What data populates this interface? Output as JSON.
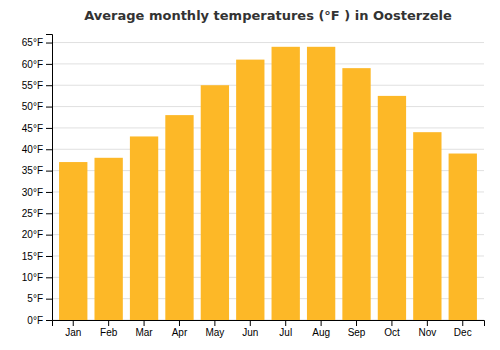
{
  "chart_data": {
    "type": "bar",
    "title": "Average monthly temperatures (°F ) in Oosterzele",
    "categories": [
      "Jan",
      "Feb",
      "Mar",
      "Apr",
      "May",
      "Jun",
      "Jul",
      "Aug",
      "Sep",
      "Oct",
      "Nov",
      "Dec"
    ],
    "values": [
      37.0,
      38.0,
      43.0,
      48.0,
      55.0,
      61.0,
      64.0,
      64.0,
      59.0,
      52.5,
      44.0,
      39.0
    ],
    "color": "#FDB827",
    "ylim": [
      0,
      67
    ],
    "yticks": [
      {
        "value": 0,
        "label": "0°F"
      },
      {
        "value": 5,
        "label": "5°F"
      },
      {
        "value": 10,
        "label": "10°F"
      },
      {
        "value": 15,
        "label": "15°F"
      },
      {
        "value": 20,
        "label": "20°F"
      },
      {
        "value": 25,
        "label": "25°F"
      },
      {
        "value": 30,
        "label": "30°F"
      },
      {
        "value": 35,
        "label": "35°F"
      },
      {
        "value": 40,
        "label": "40°F"
      },
      {
        "value": 45,
        "label": "45°F"
      },
      {
        "value": 50,
        "label": "50°F"
      },
      {
        "value": 55,
        "label": "55°F"
      },
      {
        "value": 60,
        "label": "60°F"
      },
      {
        "value": 65,
        "label": "65°F"
      }
    ],
    "grid": true
  }
}
